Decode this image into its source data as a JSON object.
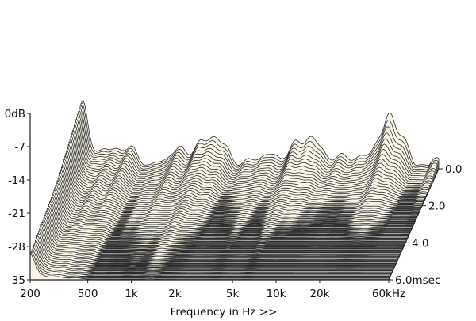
{
  "chart_data": {
    "type": "waterfall",
    "xlabel": "Frequency in Hz >>",
    "x_scale": "log",
    "x_ticks": [
      {
        "value": 200,
        "label": "200"
      },
      {
        "value": 500,
        "label": "500"
      },
      {
        "value": 1000,
        "label": "1k"
      },
      {
        "value": 2000,
        "label": "2k"
      },
      {
        "value": 5000,
        "label": "5k"
      },
      {
        "value": 10000,
        "label": "10k"
      },
      {
        "value": 20000,
        "label": "20k"
      },
      {
        "value": 60000,
        "label": "60kHz"
      }
    ],
    "xlim": [
      200,
      60000
    ],
    "y_ticks": [
      {
        "value": 0,
        "label": "0dB"
      },
      {
        "value": -7,
        "label": "-7"
      },
      {
        "value": -14,
        "label": "-14"
      },
      {
        "value": -21,
        "label": "-21"
      },
      {
        "value": -28,
        "label": "-28"
      },
      {
        "value": -35,
        "label": "-35"
      }
    ],
    "ylim": [
      -35,
      0
    ],
    "z_ticks": [
      {
        "value": 0.0,
        "label": "0.0"
      },
      {
        "value": 2.0,
        "label": "2.0"
      },
      {
        "value": 4.0,
        "label": "4.0"
      },
      {
        "value": 6.0,
        "label": "6.0msec"
      }
    ],
    "zlim": [
      0,
      6.0
    ],
    "slice_count": 62,
    "colors": {
      "surface": "#fbf8ea",
      "line": "#2a2a2a",
      "floor_line": "#4a4a4a",
      "axis": "#222222"
    }
  }
}
